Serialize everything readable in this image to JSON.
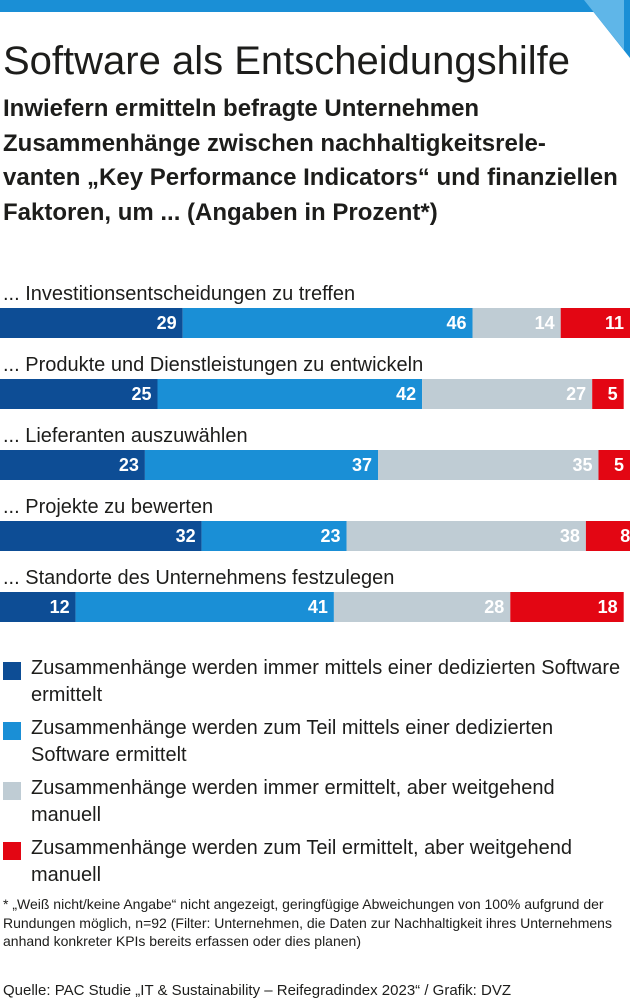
{
  "title": "Software als Entscheidungshilfe",
  "subtitle": "Inwiefern ermitteln befragte Unternehmen Zusammenhänge zwischen nachhaltigkeitsrele-vanten „Key Performance Indicators“ und finanziellen Faktoren, um ... (Angaben in Prozent*)",
  "colors": {
    "accent": "#1a8fd6",
    "series": [
      "#0d4d95",
      "#1a8fd6",
      "#bfccd4",
      "#e30613"
    ],
    "value_text": [
      "#ffffff",
      "#ffffff",
      "#ffffff",
      "#ffffff"
    ]
  },
  "chart_data": {
    "type": "bar",
    "orientation": "horizontal",
    "stacked": true,
    "categories": [
      "... Investitionsentscheidungen zu treffen",
      "... Produkte und Dienstleistungen zu entwickeln",
      "... Lieferanten auszuwählen",
      "... Projekte zu bewerten",
      "... Standorte des Unternehmens festzulegen"
    ],
    "series": [
      {
        "name": "Zusammenhänge werden immer mittels einer dedizierten Software ermittelt",
        "values": [
          29,
          25,
          23,
          32,
          12
        ]
      },
      {
        "name": "Zusammenhänge werden zum Teil mittels einer dedizierten Software ermittelt",
        "values": [
          46,
          42,
          37,
          23,
          41
        ]
      },
      {
        "name": "Zusammenhänge werden immer ermittelt, aber weitgehend manuell",
        "values": [
          14,
          27,
          35,
          38,
          28
        ]
      },
      {
        "name": "Zusammenhänge werden zum Teil ermittelt, aber weitgehend manuell",
        "values": [
          11,
          5,
          5,
          8,
          18
        ]
      }
    ],
    "xlim": [
      0,
      100
    ],
    "unit": "Prozent",
    "legend_position": "bottom"
  },
  "footnote": "* „Weiß nicht/keine Angabe“ nicht angezeigt, geringfügige Abweichungen von 100% aufgrund der Rundungen möglich, n=92 (Filter: Unternehmen, die Daten zur Nachhaltigkeit ihres Unternehmens anhand konkreter KPIs bereits erfassen oder dies planen)",
  "source": "Quelle: PAC Studie „IT & Sustainability – Reifegradindex 2023“ / Grafik: DVZ"
}
